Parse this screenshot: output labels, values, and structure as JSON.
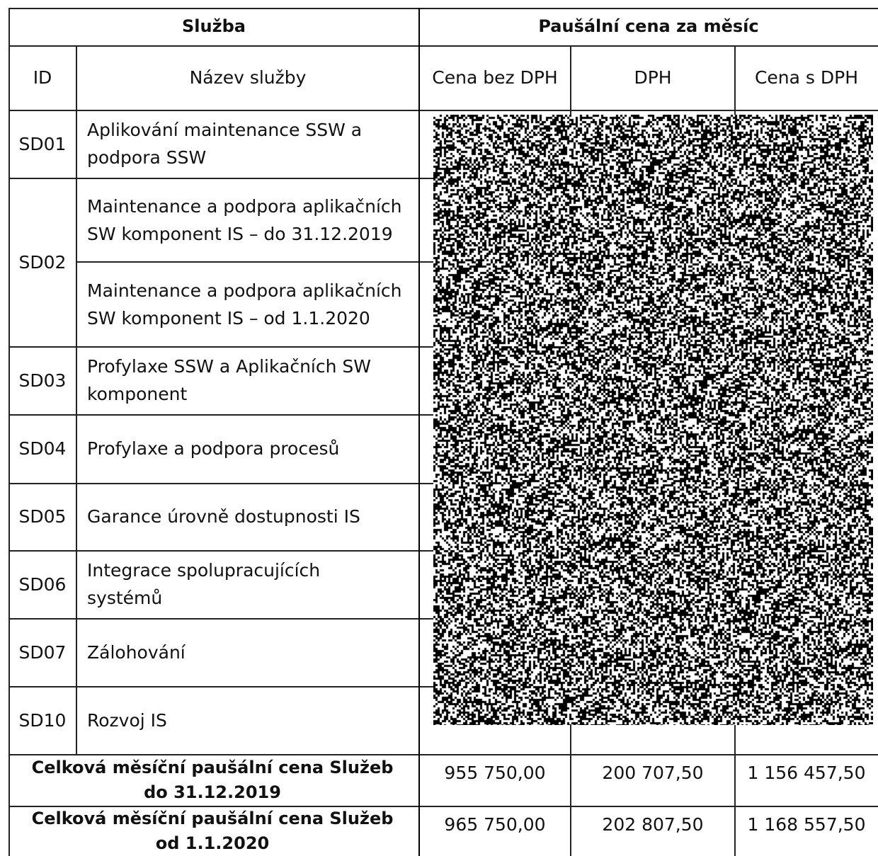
{
  "header": {
    "group_service": "Služba",
    "group_price": "Paušální cena za měsíc",
    "col_id": "ID",
    "col_name": "Název služby",
    "col_price_no_vat": "Cena bez DPH",
    "col_vat": "DPH",
    "col_price_vat": "Cena s DPH"
  },
  "rows": [
    {
      "id": "SD01",
      "name": "Aplikování maintenance SSW a podpora SSW"
    },
    {
      "id": "SD02",
      "name_a": "Maintenance a podpora aplikačních SW komponent IS – do 31.12.2019",
      "name_b": "Maintenance a podpora aplikačních SW komponent IS – od 1.1.2020"
    },
    {
      "id": "SD03",
      "name": "Profylaxe SSW a Aplikačních SW komponent"
    },
    {
      "id": "SD04",
      "name": "Profylaxe a podpora procesů"
    },
    {
      "id": "SD05",
      "name": "Garance úrovně dostupnosti IS"
    },
    {
      "id": "SD06",
      "name": "Integrace spolupracujících systémů"
    },
    {
      "id": "SD07",
      "name": "Zálohování"
    },
    {
      "id": "SD10",
      "name": "Rozvoj IS"
    }
  ],
  "totals": [
    {
      "label": "Celková měsíční paušální cena Služeb do 31.12.2019",
      "price_no_vat": "955 750,00",
      "vat": "200 707,50",
      "price_vat": "1 156 457,50"
    },
    {
      "label": "Celková měsíční paušální cena Služeb od 1.1.2020",
      "price_no_vat": "965 750,00",
      "vat": "202 807,50",
      "price_vat": "1 168 557,50"
    }
  ]
}
